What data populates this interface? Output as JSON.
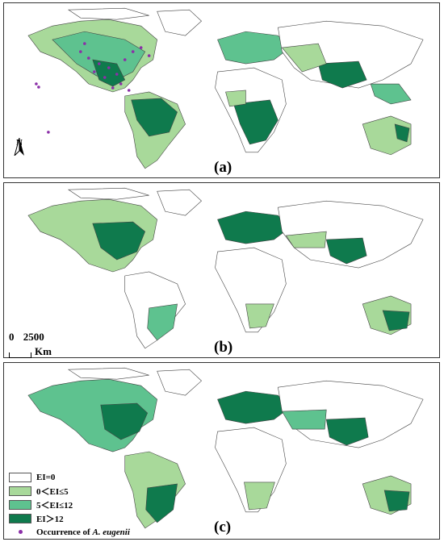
{
  "panels": [
    {
      "label": "(a)"
    },
    {
      "label": "(b)"
    },
    {
      "label": "(c)"
    }
  ],
  "north_arrow": {
    "letter": "N"
  },
  "scale_bar": {
    "start": "0",
    "end": "2500",
    "unit": "Km"
  },
  "legend": {
    "items": [
      {
        "label": "EI=0",
        "color": "#ffffff"
      },
      {
        "label": "0＜EI≤5",
        "color": "#a8d99a"
      },
      {
        "label": "5＜EI≤12",
        "color": "#5ec28f"
      },
      {
        "label": "EI＞12",
        "color": "#0f7a4d"
      }
    ],
    "occurrence_prefix": "Occurrence of ",
    "occurrence_species": "A. eugenii",
    "occurrence_color": "#8b2fa8"
  }
}
